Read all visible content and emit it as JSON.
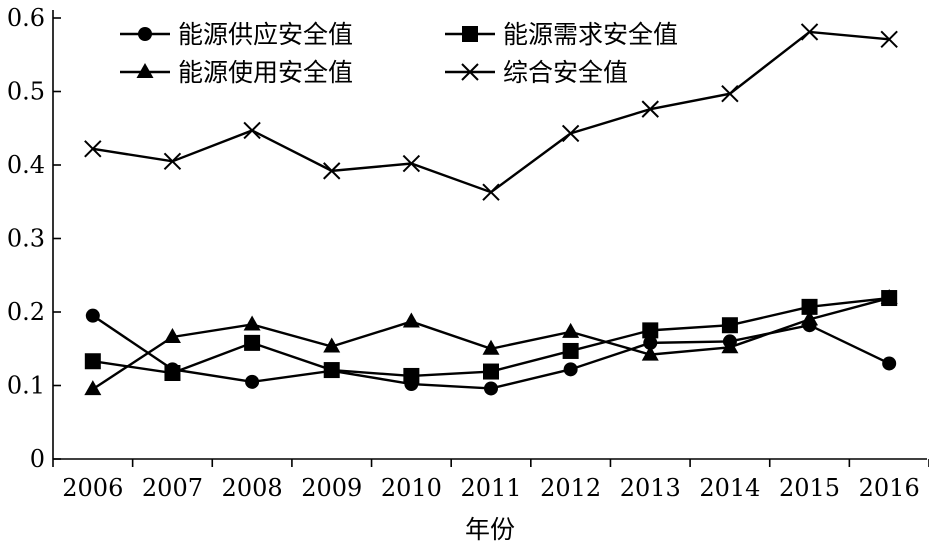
{
  "chart_data": {
    "type": "line",
    "title": "",
    "xlabel": "年份",
    "ylabel": "",
    "categories": [
      "2006",
      "2007",
      "2008",
      "2009",
      "2010",
      "2011",
      "2012",
      "2013",
      "2014",
      "2015",
      "2016"
    ],
    "ylim": [
      0,
      0.6
    ],
    "yticks": [
      "0",
      "0.1",
      "0.2",
      "0.3",
      "0.4",
      "0.5",
      "0.6"
    ],
    "ytick_values": [
      0,
      0.1,
      0.2,
      0.3,
      0.4,
      0.5,
      0.6
    ],
    "grid": false,
    "legend_position": "top-center",
    "series": [
      {
        "name": "能源供应安全值",
        "marker": "circle",
        "values": [
          0.195,
          0.122,
          0.105,
          0.12,
          0.102,
          0.096,
          0.122,
          0.158,
          0.16,
          0.182,
          0.13
        ]
      },
      {
        "name": "能源需求安全值",
        "marker": "square",
        "values": [
          0.133,
          0.117,
          0.158,
          0.121,
          0.113,
          0.119,
          0.147,
          0.175,
          0.182,
          0.207,
          0.219
        ]
      },
      {
        "name": "能源使用安全值",
        "marker": "triangle",
        "values": [
          0.095,
          0.166,
          0.183,
          0.153,
          0.187,
          0.15,
          0.173,
          0.142,
          0.152,
          0.19,
          0.219
        ]
      },
      {
        "name": "综合安全值",
        "marker": "cross",
        "values": [
          0.422,
          0.405,
          0.447,
          0.392,
          0.402,
          0.363,
          0.443,
          0.476,
          0.497,
          0.581,
          0.571
        ]
      }
    ]
  }
}
